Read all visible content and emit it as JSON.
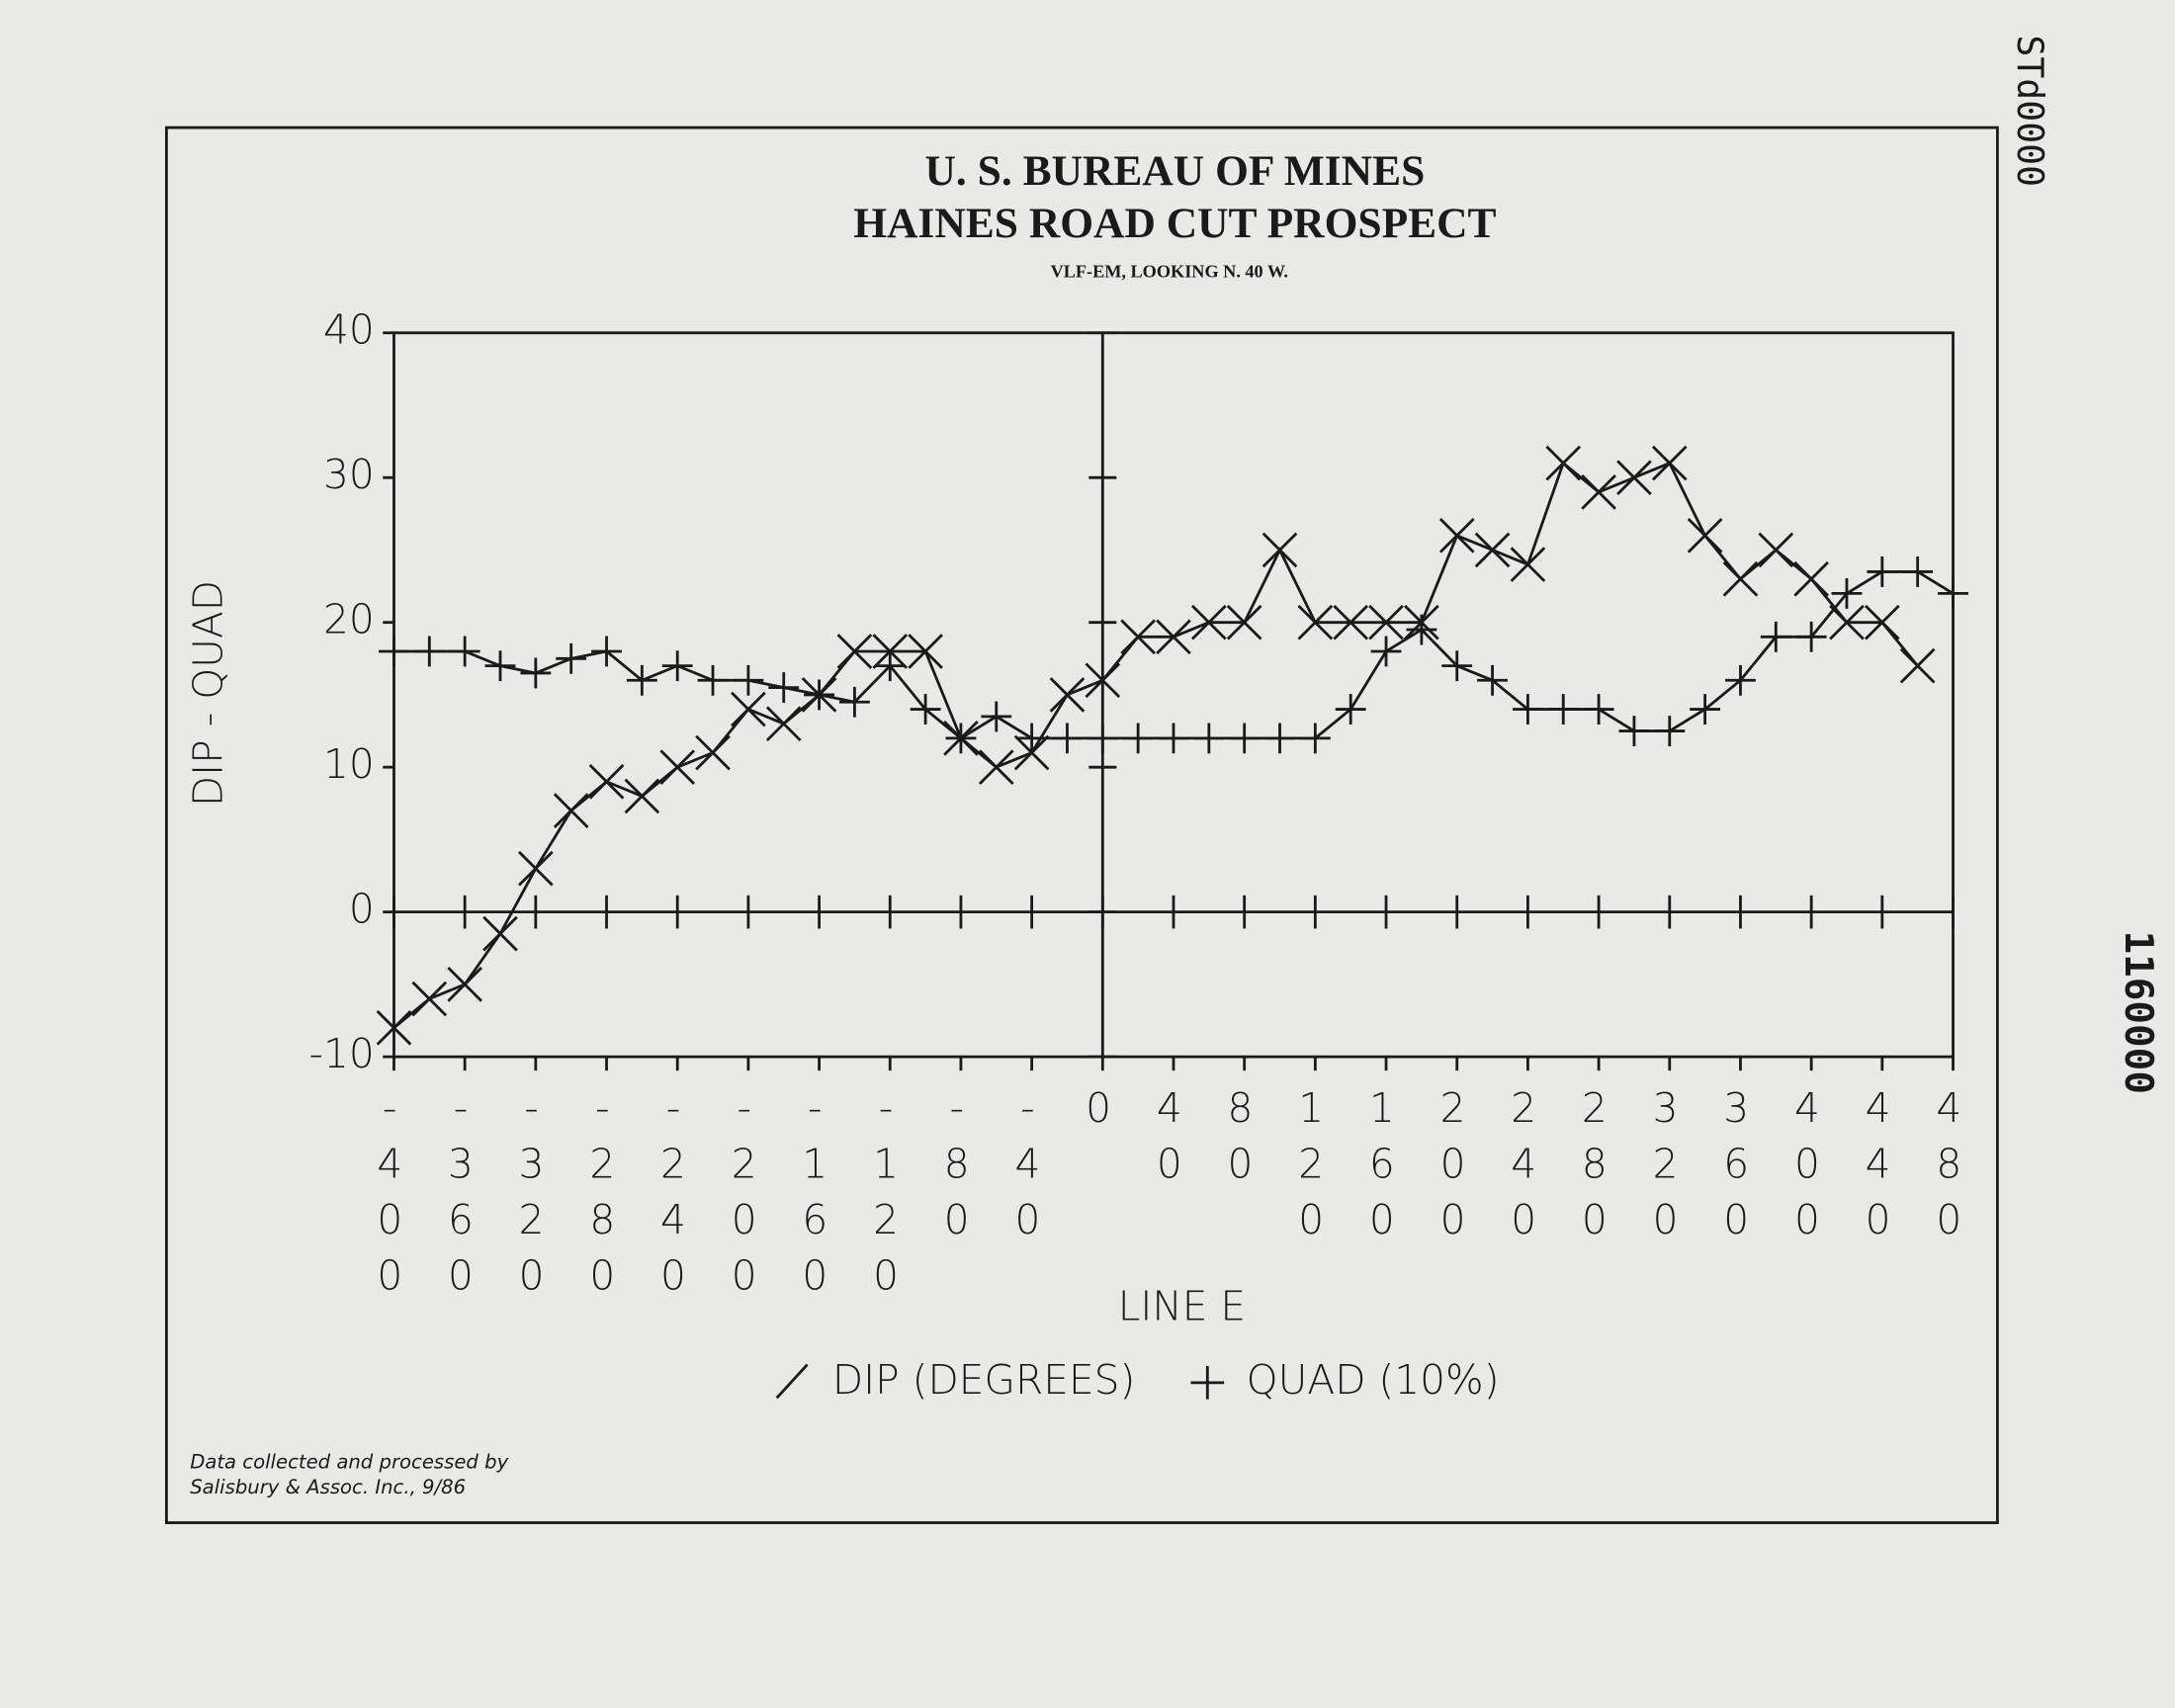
{
  "chart_data": {
    "type": "line",
    "title": "U. S. BUREAU OF MINES",
    "subtitle": "HAINES ROAD CUT PROSPECT",
    "annotation": "VLF-EM, LOOKING N. 40 W.",
    "xlabel": "LINE E",
    "ylabel": "DIP - QUAD",
    "credit": [
      "Data collected and processed by",
      "Salisbury & Assoc. Inc., 9/86"
    ],
    "x": [
      -400,
      -380,
      -360,
      -340,
      -320,
      -300,
      -280,
      -260,
      -240,
      -220,
      -200,
      -180,
      -160,
      -140,
      -120,
      -100,
      -80,
      -60,
      -40,
      -20,
      0,
      20,
      40,
      60,
      80,
      100,
      120,
      140,
      160,
      180,
      200,
      220,
      240,
      260,
      280,
      300,
      320,
      340,
      360,
      380,
      400,
      420,
      440,
      460,
      480
    ],
    "series": [
      {
        "name": "DIP (DEGREES)",
        "color": "#1a1a1a",
        "marker": "x",
        "values": [
          -8,
          -6,
          -5,
          -1.5,
          3,
          7,
          9,
          8,
          10,
          11,
          14,
          13,
          15,
          18,
          18,
          18,
          12,
          10,
          11,
          15,
          16,
          19,
          19,
          20,
          20,
          25,
          20,
          20,
          20,
          20,
          26,
          25,
          24,
          31,
          29,
          30,
          31,
          26,
          23,
          25,
          23,
          20,
          20,
          17,
          null
        ]
      },
      {
        "name": "QUAD (10%)",
        "color": "#1a1a1a",
        "marker": "plus",
        "values": [
          18,
          18,
          18,
          17,
          16.5,
          17.5,
          18,
          16,
          17,
          16,
          16,
          15.5,
          15,
          14.5,
          17,
          14,
          12,
          13.5,
          12,
          12,
          12,
          12,
          12,
          12,
          12,
          12,
          12,
          14,
          18,
          19.5,
          17,
          16,
          14,
          14,
          14,
          12.5,
          12.5,
          14,
          16,
          19,
          19,
          22,
          23.5,
          23.5,
          22
        ]
      }
    ],
    "xlim": [
      -400,
      480
    ],
    "ylim": [
      -10,
      40
    ],
    "xticks": [
      -400,
      -360,
      -320,
      -280,
      -240,
      -200,
      -160,
      -120,
      -80,
      -40,
      0,
      40,
      80,
      120,
      160,
      200,
      240,
      280,
      320,
      360,
      400,
      440,
      480
    ],
    "yticks": [
      -10,
      0,
      10,
      20,
      30,
      40
    ]
  },
  "stamps": {
    "top": "STd0000",
    "side": "1160000"
  }
}
